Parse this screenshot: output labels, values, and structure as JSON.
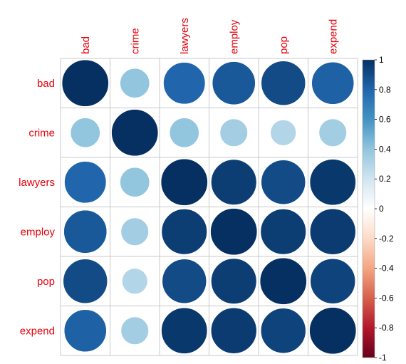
{
  "chart_data": {
    "type": "heatmap",
    "variables": [
      "bad",
      "crime",
      "lawyers",
      "employ",
      "pop",
      "expend"
    ],
    "matrix": [
      [
        1.0,
        0.4,
        0.8,
        0.85,
        0.9,
        0.82
      ],
      [
        0.4,
        1.0,
        0.4,
        0.35,
        0.3,
        0.35
      ],
      [
        0.8,
        0.4,
        1.0,
        0.95,
        0.9,
        0.97
      ],
      [
        0.85,
        0.35,
        0.95,
        1.0,
        0.95,
        0.96
      ],
      [
        0.9,
        0.3,
        0.9,
        0.95,
        1.0,
        0.93
      ],
      [
        0.82,
        0.35,
        0.97,
        0.96,
        0.93,
        1.0
      ]
    ],
    "colorbar": {
      "ticks": [
        "1",
        "0.8",
        "0.6",
        "0.4",
        "0.2",
        "0",
        "-0.2",
        "-0.4",
        "-0.6",
        "-0.8",
        "-1"
      ],
      "range": [
        -1,
        1
      ]
    },
    "label_color": "#e8000d",
    "color_stops": [
      "#67001f",
      "#b2182b",
      "#d6604d",
      "#f4a582",
      "#fddbc7",
      "#ffffff",
      "#d1e5f0",
      "#92c5de",
      "#4393c3",
      "#2166ac",
      "#053061"
    ]
  }
}
